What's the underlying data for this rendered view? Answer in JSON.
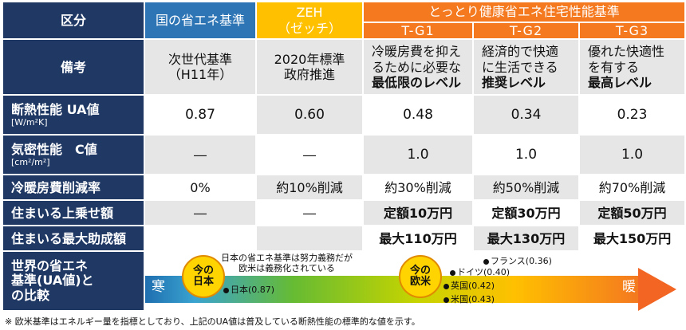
{
  "header": {
    "kubun": "区分",
    "kuni": "国の省エネ基準",
    "zeh": "ZEH\n（ゼッチ）",
    "tottori": "とっとり健康省エネ住宅性能基準",
    "tg1": "T-G1",
    "tg2": "T-G2",
    "tg3": "T-G3"
  },
  "rows": {
    "biko": {
      "label": "備考",
      "kuni": "次世代基準\n（H11年）",
      "zeh": "2020年標準\n政府推進",
      "tg1_a": "冷暖房費を抑え\nるために必要な",
      "tg1_b": "最低限のレベル",
      "tg2_a": "経済的で快適\nに生活できる",
      "tg2_b": "推奨レベル",
      "tg3_a": "優れた快適性\nを有する",
      "tg3_b": "最高レベル"
    },
    "dannetsu": {
      "label": "断熱性能 UA値",
      "unit": "[W/m²K]",
      "kuni": "0.87",
      "zeh": "0.60",
      "tg1": "0.48",
      "tg2": "0.34",
      "tg3": "0.23"
    },
    "kimitsu": {
      "label": "気密性能　C値",
      "unit": "[cm²/m²]",
      "kuni": "―",
      "zeh": "―",
      "tg1": "1.0",
      "tg2": "1.0",
      "tg3": "1.0"
    },
    "sakugen": {
      "label": "冷暖房費削減率",
      "kuni": "0%",
      "zeh": "約10%削減",
      "tg1": "約30%削減",
      "tg2": "約50%削減",
      "tg3": "約70%削減"
    },
    "uwanose": {
      "label": "住まいる上乗せ額",
      "kuni": "―",
      "zeh": "―",
      "tg1": "定額10万円",
      "tg2": "定額30万円",
      "tg3": "定額50万円"
    },
    "saidai": {
      "label": "住まいる最大助成額",
      "tg1": "最大110万円",
      "tg2": "最大130万円",
      "tg3": "最大150万円"
    },
    "sekai": {
      "label": "世界の省エネ\n基準(UA値)と\nの比較",
      "cold": "寒",
      "warm": "暖",
      "circle_japan": "今の\n日本",
      "circle_europe": "今の\n欧米",
      "message": "日本の省エネ基準は努力義務だが\n欧米は義務化されている",
      "japan": "日本(0.87)",
      "france": "フランス(0.36)",
      "germany": "ドイツ(0.40)",
      "uk": "英国(0.42)",
      "usa": "米国(0.43)"
    }
  },
  "footnote": "※ 欧米基準はエネルギー量を指標としており、上記のUA値は普及している断熱性能の標準的な値を示す。"
}
